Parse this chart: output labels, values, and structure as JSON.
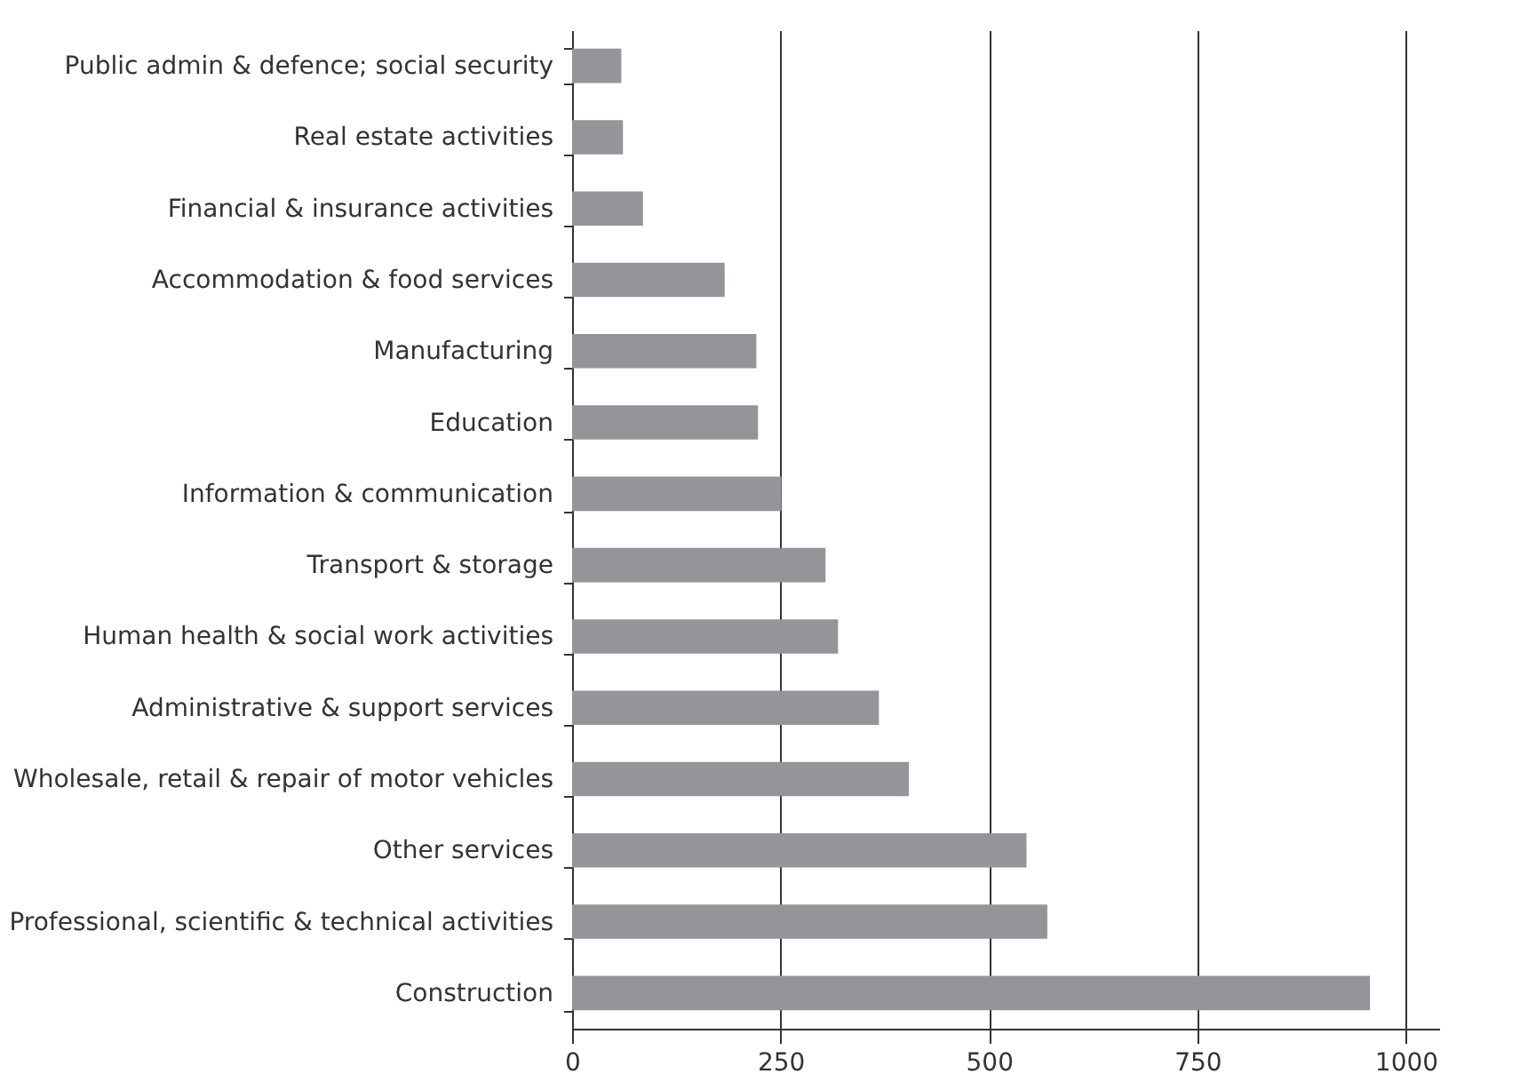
{
  "chart_data": {
    "type": "bar",
    "orientation": "horizontal",
    "categories": [
      "Public admin & defence; social security",
      "Real estate activities",
      "Financial & insurance activities",
      "Accommodation & food services",
      "Manufacturing",
      "Education",
      "Information & communication",
      "Transport & storage",
      "Human health & social work activities",
      "Administrative & support services",
      "Wholesale, retail & repair of motor vehicles",
      "Other services",
      "Professional, scientific & technical activities",
      "Construction"
    ],
    "values": [
      59,
      61,
      85,
      183,
      221,
      223,
      251,
      304,
      319,
      368,
      404,
      545,
      570,
      957
    ],
    "color": "#939598",
    "xlim": [
      0,
      1040
    ],
    "xticks": [
      0,
      250,
      500,
      750,
      1000
    ],
    "grid": "x"
  }
}
